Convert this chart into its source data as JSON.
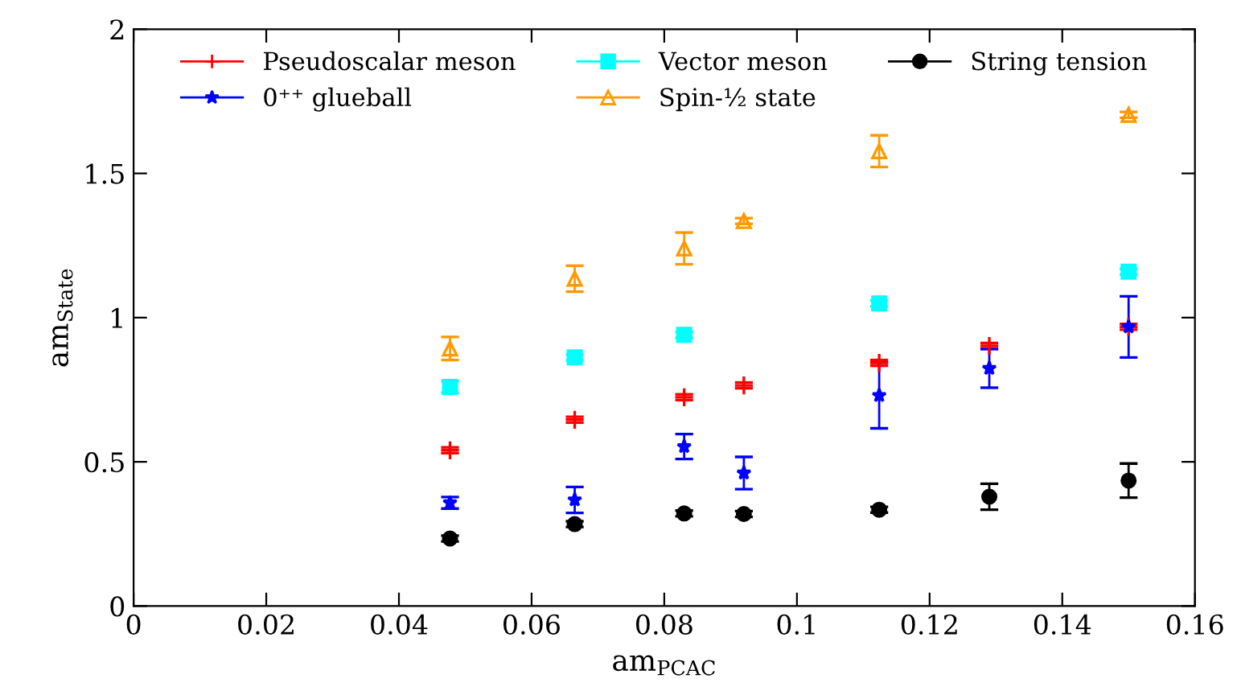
{
  "chart_data": {
    "type": "scatter",
    "xlabel": "am$_{PCAC}$",
    "ylabel": "am$_{State}$",
    "x": [
      0.0477,
      0.0665,
      0.083,
      0.092,
      0.1124,
      0.129,
      0.15
    ],
    "series": [
      {
        "name": "Pseudoscalar meson",
        "color": "#ff0000",
        "marker": "cross",
        "values": [
          0.54,
          0.646,
          0.724,
          0.765,
          0.843,
          0.902,
          0.968
        ],
        "errors": [
          0.01,
          0.01,
          0.01,
          0.01,
          0.01,
          0.01,
          0.01
        ]
      },
      {
        "name": "0⁺⁺ glueball",
        "color": "#0000ff",
        "marker": "star",
        "values": [
          0.358,
          0.368,
          0.553,
          0.461,
          0.73,
          0.824,
          0.968
        ],
        "errors": [
          0.02,
          0.045,
          0.043,
          0.056,
          0.114,
          0.067,
          0.106
        ]
      },
      {
        "name": "Vector meson",
        "color": "#00ffff",
        "marker": "square",
        "values": [
          0.76,
          0.862,
          0.94,
          null,
          1.049,
          null,
          1.159
        ],
        "errors": [
          0.02,
          0.01,
          0.01,
          null,
          0.01,
          null,
          0.01
        ]
      },
      {
        "name": "Spin-½ state",
        "color": "#ff9900",
        "marker": "triangle",
        "values": [
          0.893,
          1.135,
          1.24,
          1.335,
          1.577,
          null,
          1.703
        ],
        "errors": [
          0.04,
          0.045,
          0.055,
          0.01,
          0.055,
          null,
          0.01
        ]
      },
      {
        "name": "String tension",
        "color": "#000000",
        "marker": "circle",
        "values": [
          0.234,
          0.284,
          0.321,
          0.319,
          0.334,
          0.379,
          0.435
        ],
        "errors": [
          0.01,
          0.01,
          0.01,
          0.01,
          0.01,
          0.045,
          0.059
        ]
      }
    ],
    "xlim": [
      0,
      0.16
    ],
    "xticks": [
      0,
      0.02,
      0.04,
      0.06,
      0.08,
      0.1,
      0.12,
      0.14,
      0.16
    ],
    "ylim": [
      0,
      2
    ],
    "yticks": [
      0,
      0.5,
      1,
      1.5,
      2
    ],
    "legend": "top"
  }
}
